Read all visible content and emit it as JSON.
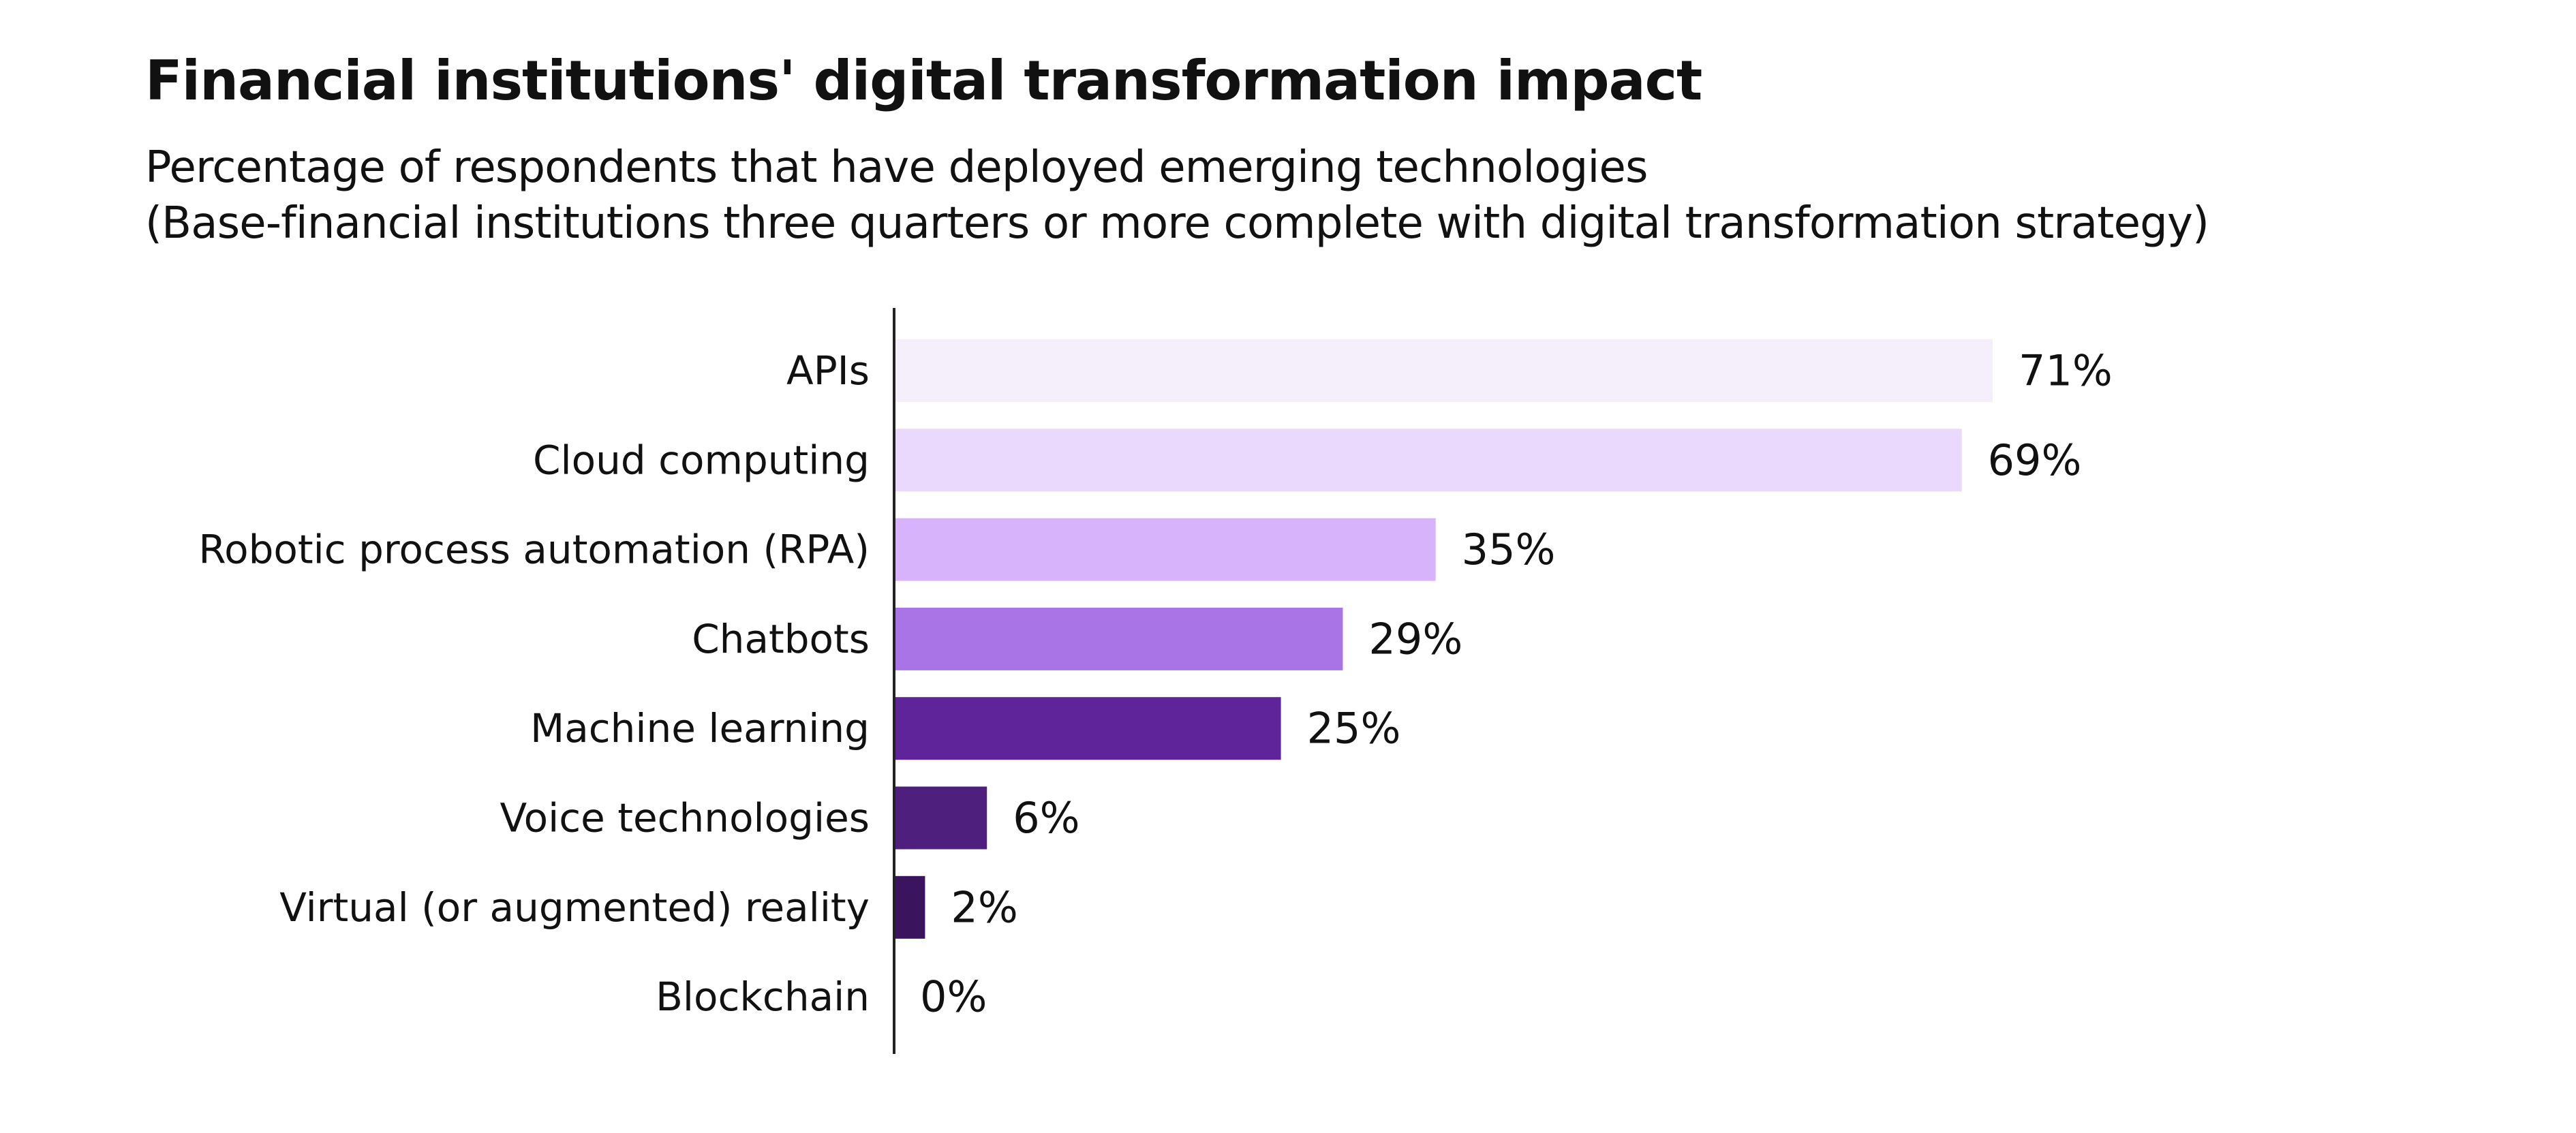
{
  "chart_data": {
    "type": "bar",
    "orientation": "horizontal",
    "title": "Financial institutions' digital transformation impact",
    "subtitle_lines": [
      "Percentage of respondents that have deployed emerging technologies",
      "(Base-financial institutions three quarters or more complete with digital transformation strategy)"
    ],
    "categories": [
      "APIs",
      "Cloud computing",
      "Robotic process automation (RPA)",
      "Chatbots",
      "Machine learning",
      "Voice technologies",
      "Virtual (or augmented) reality",
      "Blockchain"
    ],
    "values": [
      71,
      69,
      35,
      29,
      25,
      6,
      2,
      0
    ],
    "value_labels": [
      "71%",
      "69%",
      "35%",
      "29%",
      "25%",
      "6%",
      "2%",
      "0%"
    ],
    "colors": [
      "#f5effc",
      "#ead9fc",
      "#d7b3fb",
      "#a874e6",
      "#60249a",
      "#4f1f7d",
      "#3a155e",
      "#2c0e4a"
    ],
    "xlim": [
      0,
      71
    ],
    "xlabel": "",
    "ylabel": "",
    "grid": false,
    "legend": "none"
  }
}
